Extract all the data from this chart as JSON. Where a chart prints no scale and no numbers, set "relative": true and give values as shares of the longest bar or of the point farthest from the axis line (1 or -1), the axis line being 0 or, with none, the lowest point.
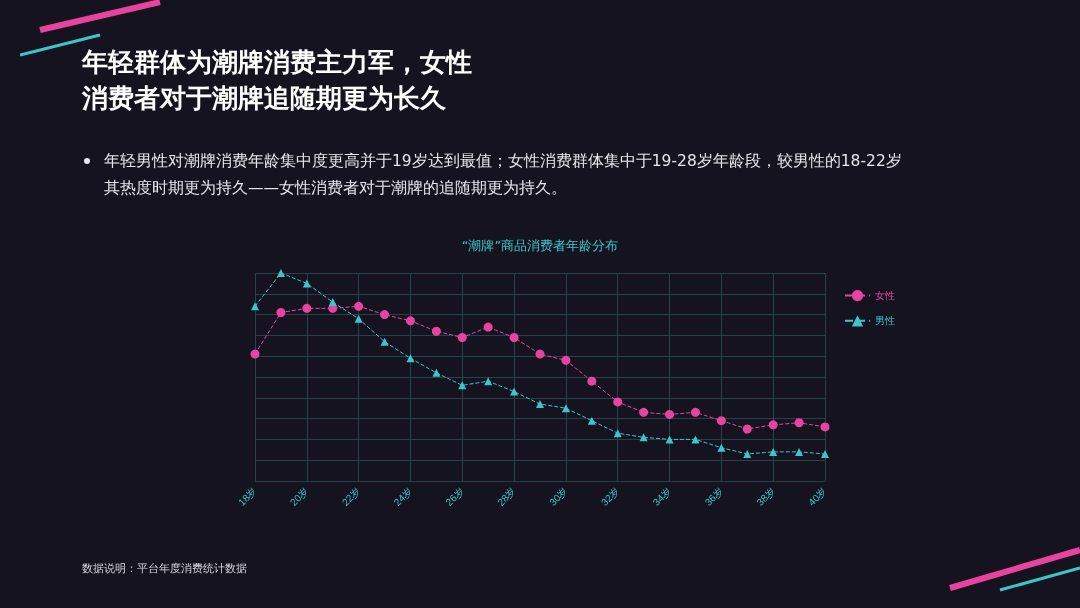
{
  "chart_data": {
    "type": "line",
    "title": "年轻群体为潮牌消费主力军，女性消费者对于潮牌追随期更为长久",
    "subtitle": "年轻男性对潮牌消费年龄集中度更高并于19岁达到最值；女性消费群体集中于19-28岁年龄段，较男性的18-22岁其热度时期更为持久——女性消费者对于潮牌的追随期更为持久。",
    "annotations": [
      "“潮牌”商品消费者年龄分布",
      "数据说明：平台年度消费统计数据"
    ],
    "categories": [
      "18岁",
      null,
      "20岁",
      null,
      "22岁",
      null,
      "24岁",
      null,
      "26岁",
      null,
      "28岁",
      null,
      "30岁",
      null,
      "32岁",
      null,
      "34岁",
      null,
      "36岁",
      null,
      "38岁",
      null,
      "40岁"
    ],
    "relative": true,
    "grid": true,
    "legend": "top right",
    "line_style": "dashed",
    "series": [
      {
        "name": "女性",
        "color": "#e8449f",
        "marker": "circle",
        "values": [
          0.61,
          0.81,
          0.83,
          0.83,
          0.84,
          0.8,
          0.77,
          0.72,
          0.69,
          0.74,
          0.69,
          0.61,
          0.58,
          0.48,
          0.38,
          0.33,
          0.32,
          0.33,
          0.29,
          0.25,
          0.27,
          0.28,
          0.26
        ]
      },
      {
        "name": "男性",
        "color": "#3cc6c8",
        "marker": "triangle",
        "values": [
          0.84,
          1,
          0.95,
          0.86,
          0.78,
          0.67,
          0.59,
          0.52,
          0.46,
          0.48,
          0.43,
          0.37,
          0.35,
          0.29,
          0.23,
          0.21,
          0.2,
          0.2,
          0.16,
          0.13,
          0.14,
          0.14,
          0.13
        ]
      }
    ]
  }
}
